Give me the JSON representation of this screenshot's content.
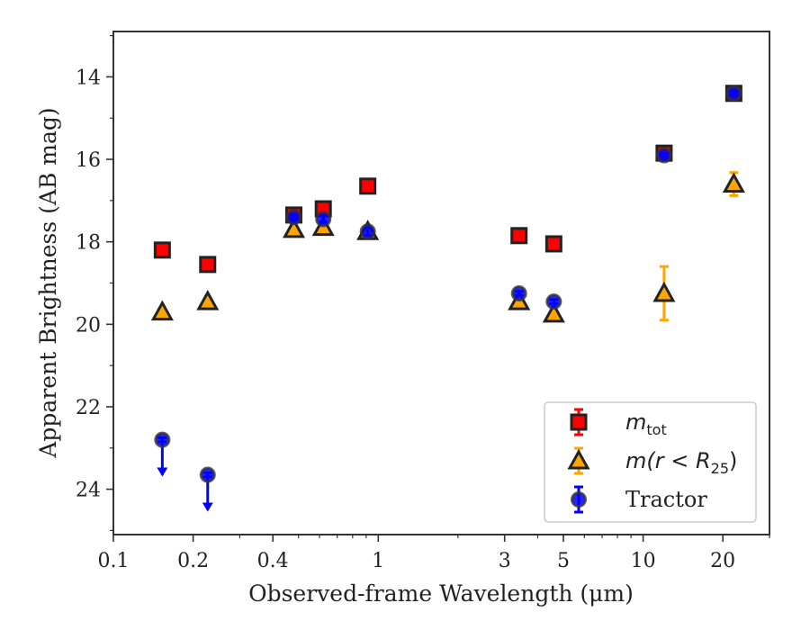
{
  "chart_data": {
    "type": "scatter",
    "title": "",
    "xlabel": "Observed-frame Wavelength (μm)",
    "ylabel": "Apparent Brightness (AB mag)",
    "xscale": "log",
    "xlim": [
      0.1,
      30
    ],
    "ylim": [
      25.1,
      12.9
    ],
    "y_inverted": true,
    "x_major_ticks": [
      0.1,
      0.2,
      0.4,
      1,
      3,
      5,
      10,
      20
    ],
    "x_tick_labels": [
      "0.1",
      "0.2",
      "0.4",
      "1",
      "3",
      "5",
      "10",
      "20"
    ],
    "y_ticks": [
      14,
      16,
      18,
      20,
      22,
      24
    ],
    "y_tick_labels": [
      "14",
      "16",
      "18",
      "20",
      "22",
      "24"
    ],
    "grid": false,
    "legend": "bottom-right",
    "legend_entries": [
      {
        "label": "m",
        "sub": "tot"
      },
      {
        "label": "m(r < R",
        "sub": "25",
        "suffix": ")"
      },
      {
        "label": "Tractor",
        "sub": "",
        "suffix": ""
      }
    ],
    "series": [
      {
        "key": "mtot",
        "marker": "square",
        "color": "#ff0000",
        "errcolor": "#ff0000",
        "points": [
          {
            "x": 0.153,
            "y": 18.2,
            "err": 0.05
          },
          {
            "x": 0.227,
            "y": 18.55,
            "err": 0.05
          },
          {
            "x": 0.48,
            "y": 17.35,
            "err": 0.05
          },
          {
            "x": 0.62,
            "y": 17.2,
            "err": 0.05
          },
          {
            "x": 0.913,
            "y": 16.65,
            "err": 0.05
          },
          {
            "x": 3.4,
            "y": 17.85,
            "err": 0.05
          },
          {
            "x": 4.6,
            "y": 18.05,
            "err": 0.05
          },
          {
            "x": 12.0,
            "y": 15.85,
            "err": 0.1
          },
          {
            "x": 22.0,
            "y": 14.4,
            "err": 0.05
          }
        ]
      },
      {
        "key": "mr25",
        "marker": "triangle",
        "color": "#ffa500",
        "errcolor": "#ffa500",
        "points": [
          {
            "x": 0.153,
            "y": 19.7,
            "err": 0.05
          },
          {
            "x": 0.227,
            "y": 19.45,
            "err": 0.05
          },
          {
            "x": 0.48,
            "y": 17.7,
            "err": 0.05
          },
          {
            "x": 0.62,
            "y": 17.65,
            "err": 0.05
          },
          {
            "x": 0.913,
            "y": 17.75,
            "err": 0.05
          },
          {
            "x": 3.4,
            "y": 19.45,
            "err": 0.05
          },
          {
            "x": 4.6,
            "y": 19.75,
            "err": 0.05
          },
          {
            "x": 12.0,
            "y": 19.25,
            "err": 0.65
          },
          {
            "x": 22.0,
            "y": 16.6,
            "err": 0.28
          }
        ]
      },
      {
        "key": "tractor",
        "marker": "circle",
        "color": "#0000ff",
        "errcolor": "#0000ff",
        "points": [
          {
            "x": 0.153,
            "y": 22.8,
            "err": 0.05,
            "upper_limit": true,
            "limit_len": 0.85
          },
          {
            "x": 0.227,
            "y": 23.65,
            "err": 0.05,
            "upper_limit": true,
            "limit_len": 0.85
          },
          {
            "x": 0.48,
            "y": 17.4,
            "err": 0.05
          },
          {
            "x": 0.62,
            "y": 17.45,
            "err": 0.08
          },
          {
            "x": 0.913,
            "y": 17.75,
            "err": 0.1
          },
          {
            "x": 3.4,
            "y": 19.25,
            "err": 0.05
          },
          {
            "x": 4.6,
            "y": 19.45,
            "err": 0.05
          },
          {
            "x": 12.0,
            "y": 15.9,
            "err": 0.05
          },
          {
            "x": 22.0,
            "y": 14.4,
            "err": 0.05
          }
        ]
      }
    ]
  }
}
